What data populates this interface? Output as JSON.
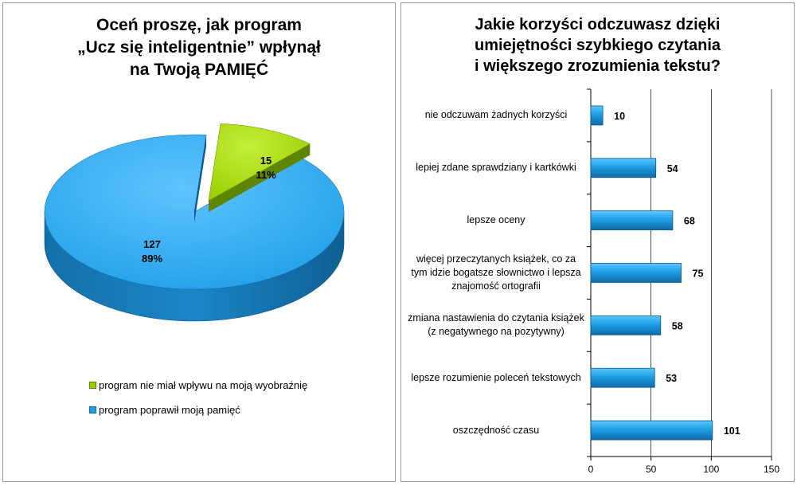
{
  "colors": {
    "green": "#99cc00",
    "green_dark": "#5f8500",
    "blue": "#1e9ee6",
    "blue_dark": "#0d5a8a",
    "gridline": "#000000"
  },
  "chart_data": [
    {
      "type": "pie",
      "title": "Oceń proszę, jak program\n„Ucz się inteligentnie” wpłynął\nna Twoją PAMIĘĆ",
      "slices": [
        {
          "label": "program nie miał wpływu na moją wyobraźnię",
          "value": 15,
          "value_label": "15",
          "percent_label": "11%",
          "color": "#99cc00"
        },
        {
          "label": "program poprawił moją pamięć",
          "value": 127,
          "value_label": "127",
          "percent_label": "89%",
          "color": "#1e9ee6"
        }
      ],
      "legend_position": "bottom"
    },
    {
      "type": "bar",
      "orientation": "horizontal",
      "title": "Jakie korzyści odczuwasz dzięki\numiejętności szybkiego czytania\ni większego zrozumienia tekstu?",
      "categories": [
        "nie odczuwam żadnych korzyści",
        "lepiej zdane sprawdziany i kartkówki",
        "lepsze oceny",
        "więcej przeczytanych książek, co za tym idzie bogatsze słownictwo i lepsza znajomość ortografii",
        "zmiana nastawienia do czytania książek (z negatywnego na pozytywny)",
        "lepsze rozumienie poleceń tekstowych",
        "oszczędność czasu"
      ],
      "values": [
        10,
        54,
        68,
        75,
        58,
        53,
        101
      ],
      "xlim": [
        0,
        150
      ],
      "xticks": [
        0,
        50,
        100,
        150
      ],
      "grid": true
    }
  ]
}
